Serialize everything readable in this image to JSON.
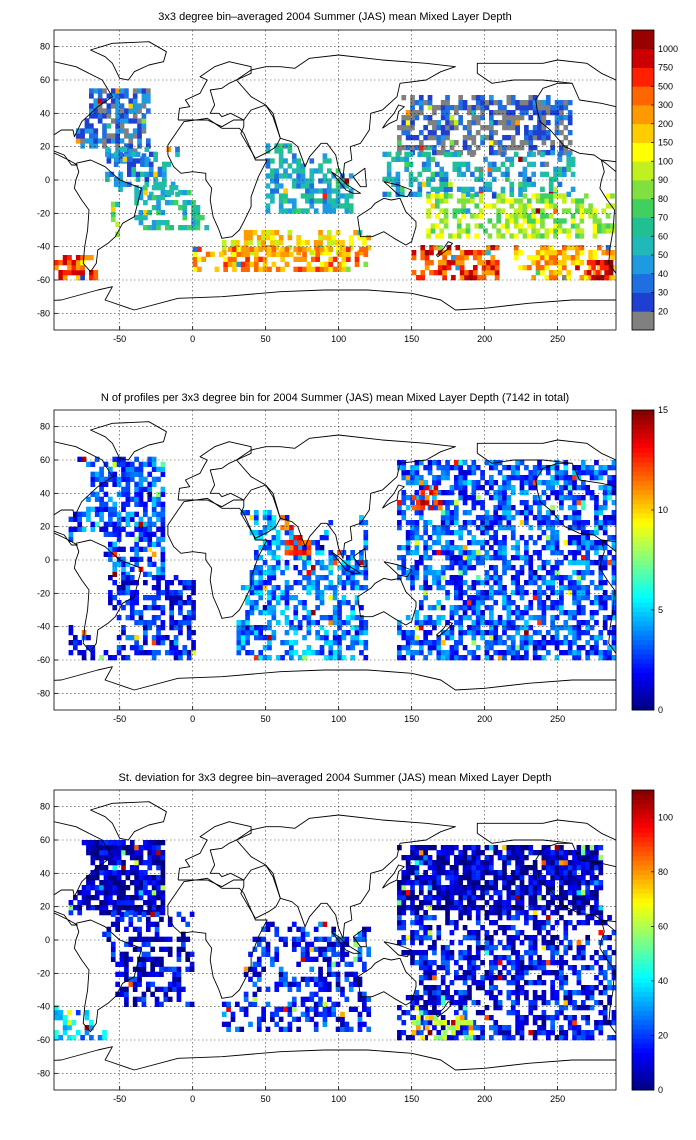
{
  "chart_data": [
    {
      "type": "heatmap",
      "title": "3x3 degree bin–averaged 2004 Summer (JAS) mean Mixed Layer Depth",
      "xlabel": "",
      "ylabel": "",
      "xlim": [
        -95,
        290
      ],
      "ylim": [
        -90,
        90
      ],
      "xticks": [
        -50,
        0,
        50,
        100,
        150,
        200,
        250
      ],
      "yticks": [
        -80,
        -60,
        -40,
        -20,
        0,
        20,
        40,
        60,
        80
      ],
      "grid": true,
      "bin_size_deg": 3,
      "colorbar": {
        "type": "categorical",
        "labels": [
          "20",
          "30",
          "40",
          "50",
          "60",
          "70",
          "80",
          "90",
          "100",
          "150",
          "200",
          "300",
          "500",
          "750",
          "1000"
        ],
        "colors": [
          "#808080",
          "#1f3fd0",
          "#1f6fe0",
          "#1e9ae0",
          "#20b8b8",
          "#20c090",
          "#40d060",
          "#80e040",
          "#c0f020",
          "#ffff00",
          "#ffcc00",
          "#ff9900",
          "#ff6600",
          "#ff2000",
          "#cc0000",
          "#990000"
        ]
      },
      "clusters": [
        {
          "lon": [
            -80,
            -30
          ],
          "lat": [
            10,
            55
          ],
          "level": 0.1,
          "density": 0.75
        },
        {
          "lon": [
            -60,
            -10
          ],
          "lat": [
            -10,
            20
          ],
          "level": 0.2,
          "density": 0.45
        },
        {
          "lon": [
            -40,
            10
          ],
          "lat": [
            -30,
            -5
          ],
          "level": 0.3,
          "density": 0.45
        },
        {
          "lon": [
            -80,
            -50
          ],
          "lat": [
            -40,
            -15
          ],
          "level": 0.55,
          "density": 0.6
        },
        {
          "lon": [
            -95,
            -65
          ],
          "lat": [
            -60,
            -45
          ],
          "level": 0.85,
          "density": 0.7
        },
        {
          "lon": [
            50,
            110
          ],
          "lat": [
            -20,
            20
          ],
          "level": 0.25,
          "density": 0.55
        },
        {
          "lon": [
            20,
            120
          ],
          "lat": [
            -45,
            -30
          ],
          "level": 0.65,
          "density": 0.6
        },
        {
          "lon": [
            0,
            120
          ],
          "lat": [
            -55,
            -40
          ],
          "level": 0.75,
          "density": 0.55
        },
        {
          "lon": [
            140,
            260
          ],
          "lat": [
            15,
            50
          ],
          "level": 0.05,
          "density": 0.6
        },
        {
          "lon": [
            130,
            260
          ],
          "lat": [
            -10,
            15
          ],
          "level": 0.25,
          "density": 0.45
        },
        {
          "lon": [
            160,
            290
          ],
          "lat": [
            -35,
            -10
          ],
          "level": 0.5,
          "density": 0.5
        },
        {
          "lon": [
            150,
            210
          ],
          "lat": [
            -60,
            -40
          ],
          "level": 0.85,
          "density": 0.6
        },
        {
          "lon": [
            220,
            290
          ],
          "lat": [
            -60,
            -40
          ],
          "level": 0.7,
          "density": 0.55
        },
        {
          "lon": [
            270,
            290
          ],
          "lat": [
            -60,
            -50
          ],
          "level": 0.95,
          "density": 0.7
        }
      ]
    },
    {
      "type": "heatmap",
      "title": "N of profiles per 3x3 degree bin for 2004 Summer (JAS) mean Mixed Layer Depth  (7142 in total)",
      "xlabel": "",
      "ylabel": "",
      "xlim": [
        -95,
        290
      ],
      "ylim": [
        -90,
        90
      ],
      "xticks": [
        -50,
        0,
        50,
        100,
        150,
        200,
        250
      ],
      "yticks": [
        -80,
        -60,
        -40,
        -20,
        0,
        20,
        40,
        60,
        80
      ],
      "grid": true,
      "bin_size_deg": 3,
      "colorbar": {
        "type": "continuous",
        "colormap": "jet",
        "min": 0,
        "max": 15,
        "ticks": [
          0,
          5,
          10,
          15
        ]
      },
      "clusters": [
        {
          "lon": [
            -85,
            -20
          ],
          "lat": [
            -10,
            60
          ],
          "level": 0.2,
          "density": 0.65
        },
        {
          "lon": [
            -85,
            0
          ],
          "lat": [
            -60,
            -10
          ],
          "level": 0.15,
          "density": 0.55
        },
        {
          "lon": [
            30,
            120
          ],
          "lat": [
            -60,
            30
          ],
          "level": 0.25,
          "density": 0.55
        },
        {
          "lon": [
            140,
            290
          ],
          "lat": [
            -60,
            60
          ],
          "level": 0.2,
          "density": 0.6
        },
        {
          "lon": [
            150,
            170
          ],
          "lat": [
            30,
            45
          ],
          "level": 0.85,
          "density": 0.5
        },
        {
          "lon": [
            60,
            80
          ],
          "lat": [
            0,
            25
          ],
          "level": 0.8,
          "density": 0.5
        }
      ]
    },
    {
      "type": "heatmap",
      "title": "St. deviation for 3x3 degree bin–averaged 2004 Summer (JAS) mean Mixed Layer Depth",
      "xlabel": "",
      "ylabel": "",
      "xlim": [
        -95,
        290
      ],
      "ylim": [
        -90,
        90
      ],
      "xticks": [
        -50,
        0,
        50,
        100,
        150,
        200,
        250
      ],
      "yticks": [
        -80,
        -60,
        -40,
        -20,
        0,
        20,
        40,
        60,
        80
      ],
      "grid": true,
      "bin_size_deg": 3,
      "colorbar": {
        "type": "continuous",
        "colormap": "jet",
        "min": 0,
        "max": 110,
        "ticks": [
          0,
          20,
          40,
          60,
          80,
          100
        ]
      },
      "clusters": [
        {
          "lon": [
            -85,
            -20
          ],
          "lat": [
            15,
            60
          ],
          "level": 0.06,
          "density": 0.8
        },
        {
          "lon": [
            -80,
            0
          ],
          "lat": [
            -40,
            15
          ],
          "level": 0.1,
          "density": 0.45
        },
        {
          "lon": [
            -95,
            -60
          ],
          "lat": [
            -60,
            -40
          ],
          "level": 0.3,
          "density": 0.55
        },
        {
          "lon": [
            20,
            120
          ],
          "lat": [
            -55,
            10
          ],
          "level": 0.15,
          "density": 0.45
        },
        {
          "lon": [
            140,
            280
          ],
          "lat": [
            15,
            55
          ],
          "level": 0.06,
          "density": 0.8
        },
        {
          "lon": [
            140,
            290
          ],
          "lat": [
            -60,
            15
          ],
          "level": 0.12,
          "density": 0.5
        },
        {
          "lon": [
            150,
            190
          ],
          "lat": [
            -60,
            -45
          ],
          "level": 0.6,
          "density": 0.45
        }
      ]
    }
  ]
}
